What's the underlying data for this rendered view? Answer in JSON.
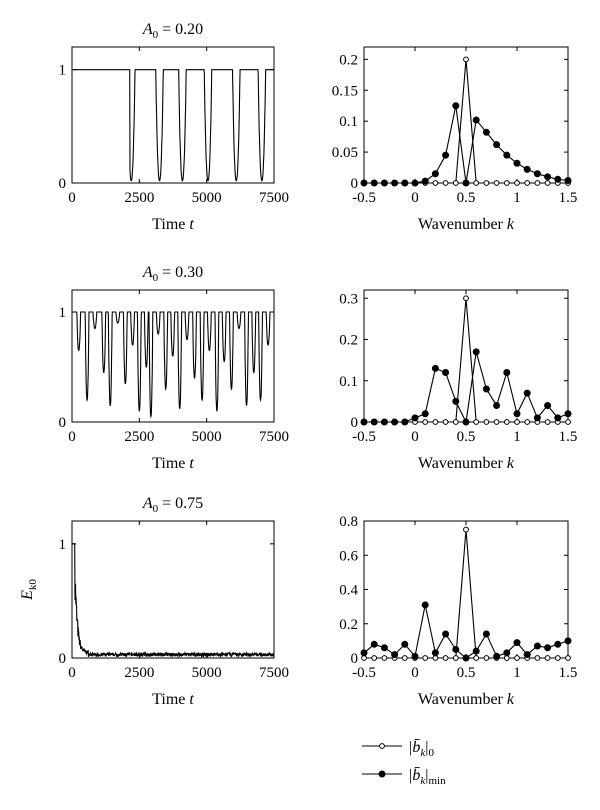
{
  "figure": {
    "legend": {
      "entries": [
        {
          "series_key": "b0",
          "main": "|b̄",
          "sub1": "k",
          "close": "|",
          "sub2": "0",
          "marker": "open-circle"
        },
        {
          "series_key": "bmin",
          "main": "|b̄",
          "sub1": "k",
          "close": "|",
          "sub2": "min",
          "marker": "filled-circle"
        }
      ]
    }
  },
  "chart_data": [
    {
      "id": "r1-left",
      "type": "line",
      "title_main": "A",
      "title_sub": "0",
      "title_rest": " = 0.20",
      "xlabel_main": "Time ",
      "xlabel_var": "t",
      "ylabel_main": "",
      "ylabel_sub": "",
      "xlim": [
        0,
        7500
      ],
      "ylim": [
        0,
        1.2
      ],
      "xticks": [
        0,
        2500,
        5000,
        7500
      ],
      "yticks": [
        0,
        1
      ],
      "signal": {
        "base": 1,
        "flat_until": 2150,
        "dips": [
          2200,
          3250,
          4100,
          5050,
          6100,
          7050
        ],
        "dip_min": 0.02
      }
    },
    {
      "id": "r1-right",
      "type": "line",
      "title_main": "",
      "title_sub": "",
      "title_rest": "",
      "xlabel_main": "Wavenumber ",
      "xlabel_var": "k",
      "xlim": [
        -0.5,
        1.5
      ],
      "ylim": [
        0,
        0.22
      ],
      "xticks": [
        -0.5,
        0,
        0.5,
        1,
        1.5
      ],
      "yticks": [
        0,
        0.05,
        0.1,
        0.15,
        0.2
      ],
      "x": [
        -0.5,
        -0.4,
        -0.3,
        -0.2,
        -0.1,
        0,
        0.1,
        0.2,
        0.3,
        0.4,
        0.5,
        0.6,
        0.7,
        0.8,
        0.9,
        1.0,
        1.1,
        1.2,
        1.3,
        1.4,
        1.5
      ],
      "series": [
        {
          "key": "b0",
          "values": [
            0,
            0,
            0,
            0,
            0,
            0,
            0,
            0,
            0,
            0,
            0.2,
            0,
            0,
            0,
            0,
            0,
            0,
            0,
            0,
            0,
            0
          ]
        },
        {
          "key": "bmin",
          "values": [
            0,
            0,
            0,
            0,
            0,
            0,
            0.003,
            0.015,
            0.045,
            0.125,
            0,
            0.102,
            0.082,
            0.062,
            0.045,
            0.032,
            0.022,
            0.015,
            0.01,
            0.006,
            0.004
          ]
        }
      ]
    },
    {
      "id": "r2-left",
      "type": "line",
      "title_main": "A",
      "title_sub": "0",
      "title_rest": " = 0.30",
      "xlabel_main": "Time ",
      "xlabel_var": "t",
      "ylabel_main": "",
      "ylabel_sub": "",
      "xlim": [
        0,
        7500
      ],
      "ylim": [
        0,
        1.2
      ],
      "xticks": [
        0,
        2500,
        5000,
        7500
      ],
      "yticks": [
        0,
        1
      ],
      "signal": {
        "base": 1,
        "flat_until": 150,
        "dips": [
          250,
          560,
          850,
          1180,
          1420,
          1700,
          1980,
          2250,
          2500,
          2760,
          2930,
          3200,
          3480,
          3740,
          4000,
          4270,
          4550,
          4830,
          5100,
          5380,
          5650,
          5920,
          6200,
          6480,
          6750,
          7000,
          7280
        ],
        "depths": [
          0.65,
          0.2,
          0.85,
          0.45,
          0.15,
          0.9,
          0.35,
          0.7,
          0.1,
          0.5,
          0.05,
          0.8,
          0.3,
          0.6,
          0.12,
          0.75,
          0.4,
          0.2,
          0.65,
          0.1,
          0.55,
          0.3,
          0.85,
          0.15,
          0.45,
          0.2,
          0.7
        ]
      }
    },
    {
      "id": "r2-right",
      "type": "line",
      "title_main": "",
      "title_sub": "",
      "title_rest": "",
      "xlabel_main": "Wavenumber ",
      "xlabel_var": "k",
      "xlim": [
        -0.5,
        1.5
      ],
      "ylim": [
        0,
        0.32
      ],
      "xticks": [
        -0.5,
        0,
        0.5,
        1,
        1.5
      ],
      "yticks": [
        0,
        0.1,
        0.2,
        0.3
      ],
      "x": [
        -0.5,
        -0.4,
        -0.3,
        -0.2,
        -0.1,
        0,
        0.1,
        0.2,
        0.3,
        0.4,
        0.5,
        0.6,
        0.7,
        0.8,
        0.9,
        1.0,
        1.1,
        1.2,
        1.3,
        1.4,
        1.5
      ],
      "series": [
        {
          "key": "b0",
          "values": [
            0,
            0,
            0,
            0,
            0,
            0,
            0,
            0,
            0,
            0,
            0.3,
            0,
            0,
            0,
            0,
            0,
            0,
            0,
            0,
            0,
            0
          ]
        },
        {
          "key": "bmin",
          "values": [
            0,
            0,
            0,
            0,
            0,
            0.01,
            0.02,
            0.13,
            0.12,
            0.05,
            0,
            0.17,
            0.08,
            0.04,
            0.12,
            0.02,
            0.07,
            0.01,
            0.04,
            0.01,
            0.02
          ]
        }
      ]
    },
    {
      "id": "r3-left",
      "type": "line",
      "title_main": "A",
      "title_sub": "0",
      "title_rest": " = 0.75",
      "xlabel_main": "Time ",
      "xlabel_var": "t",
      "ylabel_main": "E",
      "ylabel_sub": "k0",
      "xlim": [
        0,
        7500
      ],
      "ylim": [
        0,
        1.2
      ],
      "xticks": [
        0,
        2500,
        5000,
        7500
      ],
      "yticks": [
        0,
        1
      ],
      "signal": {
        "base": 1,
        "flat_until": 100,
        "decay_to": 0.05
      }
    },
    {
      "id": "r3-right",
      "type": "line",
      "title_main": "",
      "title_sub": "",
      "title_rest": "",
      "xlabel_main": "Wavenumber ",
      "xlabel_var": "k",
      "xlim": [
        -0.5,
        1.5
      ],
      "ylim": [
        0,
        0.8
      ],
      "xticks": [
        -0.5,
        0,
        0.5,
        1,
        1.5
      ],
      "yticks": [
        0,
        0.2,
        0.4,
        0.6,
        0.8
      ],
      "x": [
        -0.5,
        -0.4,
        -0.3,
        -0.2,
        -0.1,
        0,
        0.1,
        0.2,
        0.3,
        0.4,
        0.5,
        0.6,
        0.7,
        0.8,
        0.9,
        1.0,
        1.1,
        1.2,
        1.3,
        1.4,
        1.5
      ],
      "series": [
        {
          "key": "b0",
          "values": [
            0,
            0,
            0,
            0,
            0,
            0,
            0,
            0,
            0,
            0,
            0.75,
            0,
            0,
            0,
            0,
            0,
            0,
            0,
            0,
            0,
            0
          ]
        },
        {
          "key": "bmin",
          "values": [
            0.03,
            0.08,
            0.06,
            0.02,
            0.08,
            0.01,
            0.31,
            0.03,
            0.14,
            0.05,
            0,
            0.04,
            0.14,
            0.01,
            0.03,
            0.09,
            0.02,
            0.07,
            0.06,
            0.08,
            0.1
          ]
        }
      ]
    }
  ]
}
